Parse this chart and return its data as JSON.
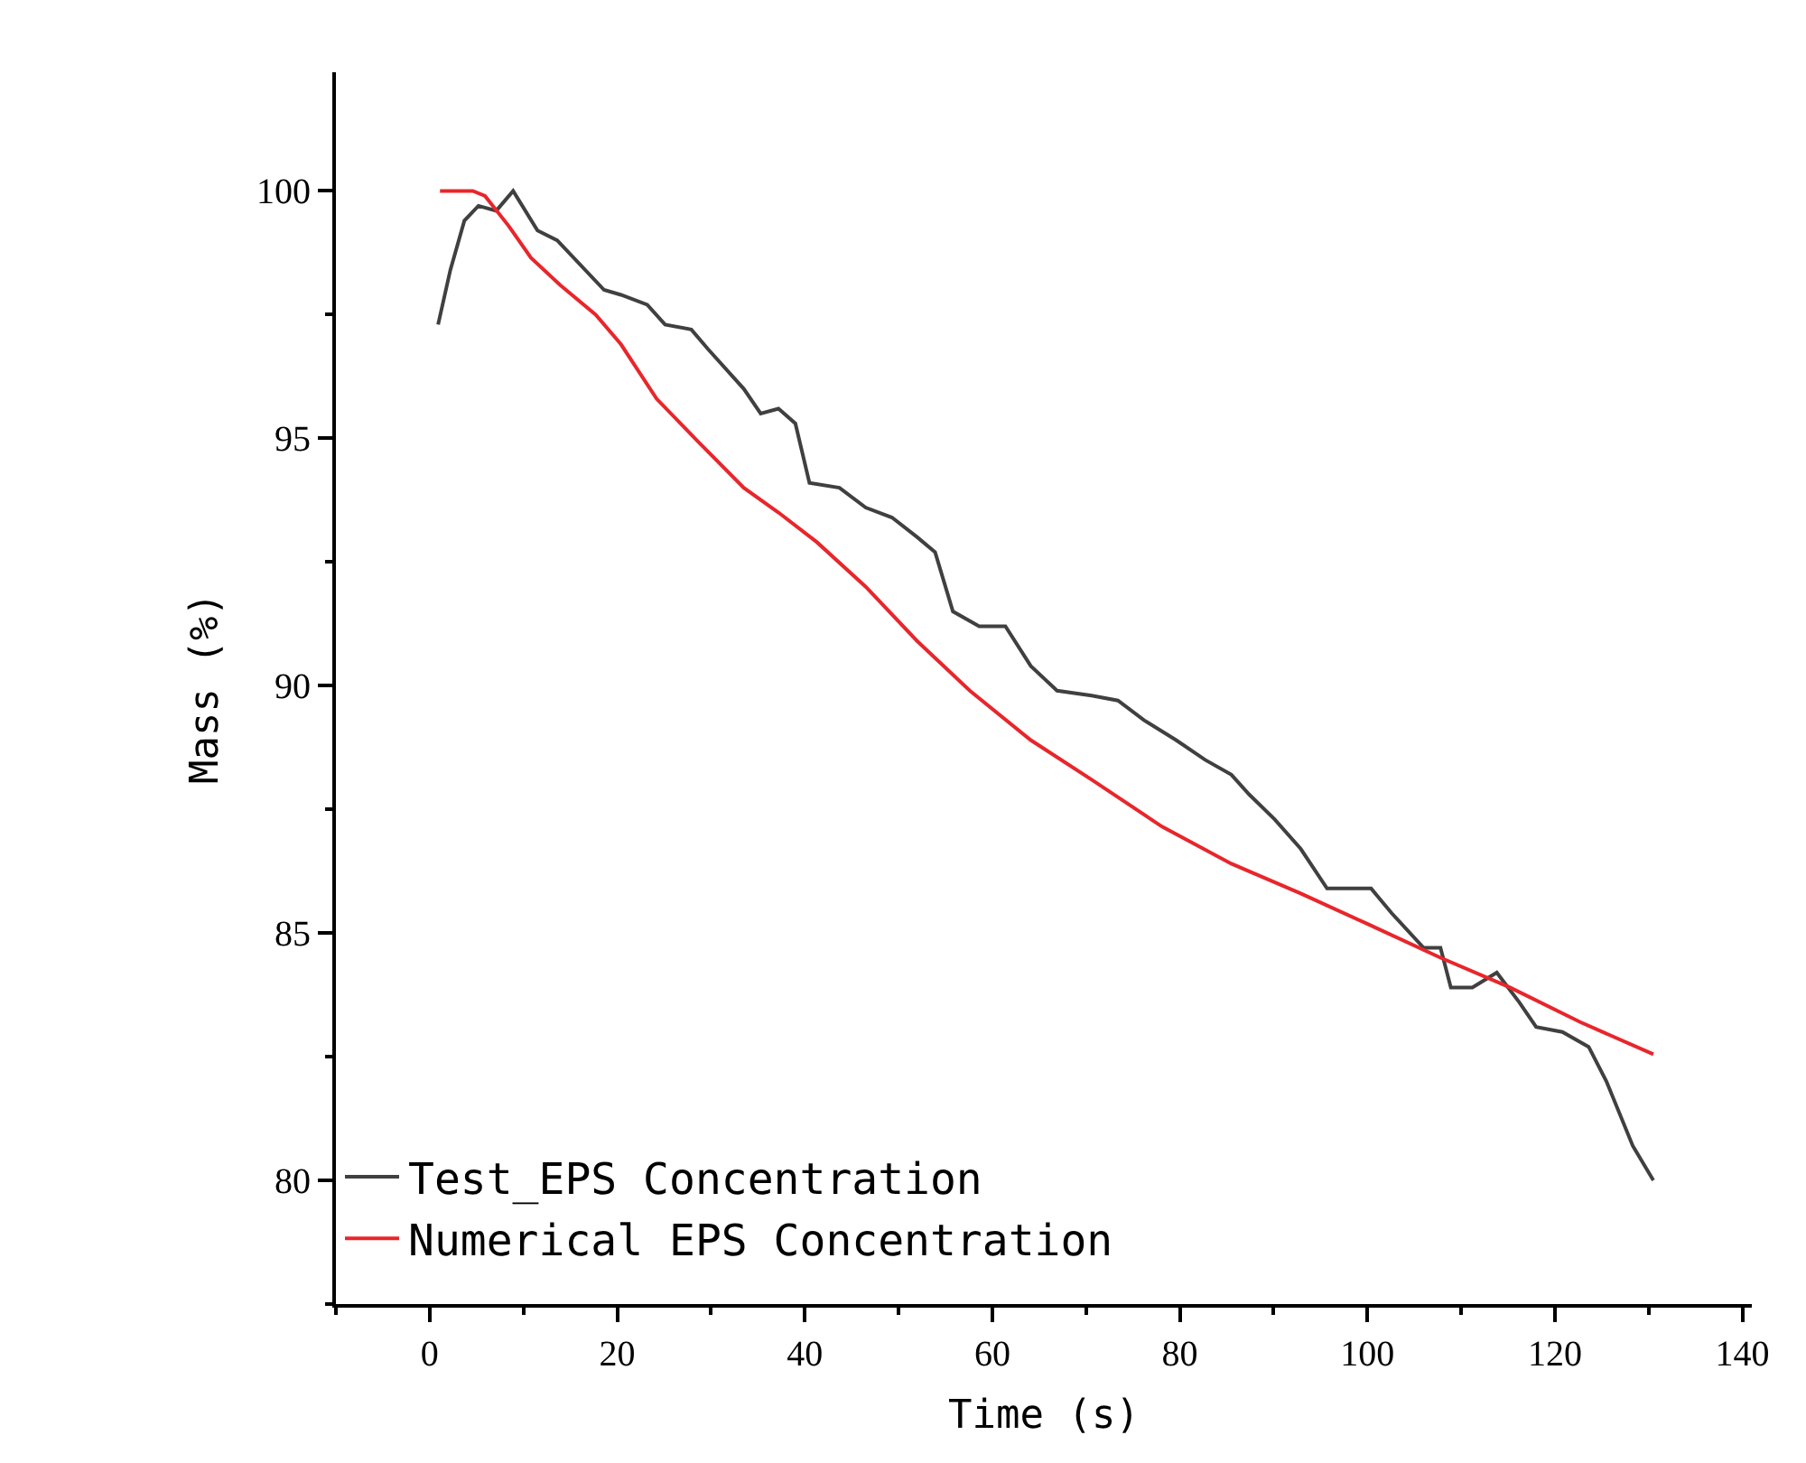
{
  "chart_data": {
    "type": "line",
    "xlabel": "Time (s)",
    "ylabel": "Mass (%)",
    "xlim": [
      -10,
      141
    ],
    "xticks": [
      0,
      20,
      40,
      60,
      80,
      100,
      120,
      140
    ],
    "ylim": [
      77.5,
      102.4
    ],
    "yticks": [
      80,
      85,
      90,
      95,
      100
    ],
    "legend": "bottom left",
    "marker": "none",
    "line_style": "solid",
    "series": [
      {
        "name": "Test_EPS Concentration",
        "color": "#404040",
        "x": [
          0.9,
          2.2,
          3.7,
          5.2,
          7.1,
          8.9,
          11.5,
          13.6,
          18.6,
          20.4,
          23.2,
          25.1,
          27.9,
          29.7,
          33.5,
          35.3,
          37.2,
          39.0,
          40.5,
          43.7,
          46.5,
          49.3,
          52.0,
          53.9,
          55.8,
          58.6,
          61.4,
          64.1,
          66.9,
          70.6,
          73.4,
          76.2,
          79.6,
          82.7,
          85.5,
          87.4,
          90.1,
          92.9,
          95.7,
          100.4,
          102.6,
          106.0,
          107.8,
          108.9,
          111.2,
          113.8,
          116.2,
          118.0,
          120.8,
          123.6,
          125.5,
          128.3,
          130.5
        ],
        "values": [
          97.3,
          98.4,
          99.4,
          99.7,
          99.6,
          100.0,
          99.2,
          99.0,
          98.0,
          97.9,
          97.7,
          97.3,
          97.2,
          96.8,
          96.0,
          95.5,
          95.6,
          95.3,
          94.1,
          94.0,
          93.6,
          93.4,
          93.0,
          92.7,
          91.5,
          91.2,
          91.2,
          90.4,
          89.9,
          89.8,
          89.7,
          89.3,
          88.9,
          88.5,
          88.2,
          87.8,
          87.3,
          86.7,
          85.9,
          85.9,
          85.4,
          84.7,
          84.7,
          83.9,
          83.9,
          84.2,
          83.6,
          83.1,
          83.0,
          82.7,
          82.0,
          80.7,
          80.0
        ]
      },
      {
        "name": "Numerical EPS Concentration",
        "color": "#e8262b",
        "x": [
          1.1,
          4.6,
          5.9,
          8.4,
          10.8,
          13.9,
          17.7,
          20.4,
          24.2,
          28.8,
          33.5,
          37.2,
          41.3,
          46.5,
          52.0,
          57.6,
          64.1,
          70.6,
          78.1,
          85.5,
          92.9,
          100.4,
          107.8,
          115.2,
          122.7,
          130.5
        ],
        "values": [
          100.0,
          100.0,
          99.9,
          99.3,
          98.65,
          98.1,
          97.5,
          96.9,
          95.8,
          94.9,
          94.0,
          93.5,
          92.9,
          92.0,
          90.9,
          89.9,
          88.9,
          88.1,
          87.15,
          86.4,
          85.8,
          85.15,
          84.5,
          83.9,
          83.2,
          82.55
        ]
      }
    ]
  }
}
